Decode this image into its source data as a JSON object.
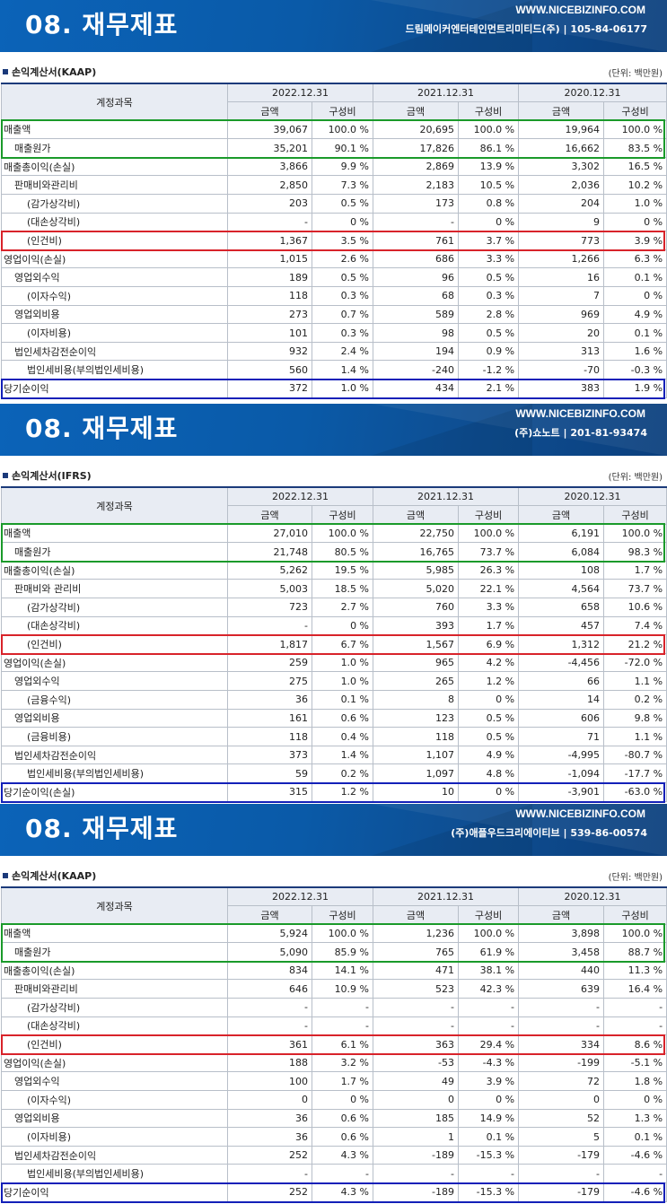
{
  "panels": [
    {
      "title": "08. 재무제표",
      "url": "WWW.NICEBIZINFO.COM",
      "company": "드림메이커엔터테인먼트리미티드(주) | 105-84-06177",
      "section": "손익계산서(KAAP)",
      "unit": "(단위: 백만원)",
      "header": {
        "account": "계정과목",
        "periods": [
          "2022.12.31",
          "2021.12.31",
          "2020.12.31"
        ],
        "amount": "금액",
        "ratio": "구성비"
      },
      "rows": [
        {
          "name": "매출액",
          "indent": 0,
          "v": [
            "39,067",
            "100.0 %",
            "20,695",
            "100.0 %",
            "19,964",
            "100.0 %"
          ]
        },
        {
          "name": "매출원가",
          "indent": 1,
          "v": [
            "35,201",
            "90.1 %",
            "17,826",
            "86.1 %",
            "16,662",
            "83.5 %"
          ]
        },
        {
          "name": "매출총이익(손실)",
          "indent": 0,
          "v": [
            "3,866",
            "9.9 %",
            "2,869",
            "13.9 %",
            "3,302",
            "16.5 %"
          ]
        },
        {
          "name": "판매비와관리비",
          "indent": 1,
          "v": [
            "2,850",
            "7.3 %",
            "2,183",
            "10.5 %",
            "2,036",
            "10.2 %"
          ]
        },
        {
          "name": "(감가상각비)",
          "indent": 2,
          "v": [
            "203",
            "0.5 %",
            "173",
            "0.8 %",
            "204",
            "1.0 %"
          ]
        },
        {
          "name": "(대손상각비)",
          "indent": 2,
          "v": [
            "-",
            "0 %",
            "-",
            "0 %",
            "9",
            "0 %"
          ]
        },
        {
          "name": "(인건비)",
          "indent": 2,
          "v": [
            "1,367",
            "3.5 %",
            "761",
            "3.7 %",
            "773",
            "3.9 %"
          ]
        },
        {
          "name": "영업이익(손실)",
          "indent": 0,
          "v": [
            "1,015",
            "2.6 %",
            "686",
            "3.3 %",
            "1,266",
            "6.3 %"
          ]
        },
        {
          "name": "영업외수익",
          "indent": 1,
          "v": [
            "189",
            "0.5 %",
            "96",
            "0.5 %",
            "16",
            "0.1 %"
          ]
        },
        {
          "name": "(이자수익)",
          "indent": 2,
          "v": [
            "118",
            "0.3 %",
            "68",
            "0.3 %",
            "7",
            "0 %"
          ]
        },
        {
          "name": "영업외비용",
          "indent": 1,
          "v": [
            "273",
            "0.7 %",
            "589",
            "2.8 %",
            "969",
            "4.9 %"
          ]
        },
        {
          "name": "(이자비용)",
          "indent": 2,
          "v": [
            "101",
            "0.3 %",
            "98",
            "0.5 %",
            "20",
            "0.1 %"
          ]
        },
        {
          "name": "법인세차감전순이익",
          "indent": 1,
          "v": [
            "932",
            "2.4 %",
            "194",
            "0.9 %",
            "313",
            "1.6 %"
          ]
        },
        {
          "name": "법인세비용(부의법인세비용)",
          "indent": 2,
          "v": [
            "560",
            "1.4 %",
            "-240",
            "-1.2 %",
            "-70",
            "-0.3 %"
          ]
        },
        {
          "name": "당기순이익",
          "indent": 0,
          "v": [
            "372",
            "1.0 %",
            "434",
            "2.1 %",
            "383",
            "1.9 %"
          ]
        }
      ]
    },
    {
      "title": "08. 재무제표",
      "url": "WWW.NICEBIZINFO.COM",
      "company": "(주)쇼노트 | 201-81-93474",
      "section": "손익계산서(IFRS)",
      "unit": "(단위: 백만원)",
      "header": {
        "account": "계정과목",
        "periods": [
          "2022.12.31",
          "2021.12.31",
          "2020.12.31"
        ],
        "amount": "금액",
        "ratio": "구성비"
      },
      "rows": [
        {
          "name": "매출액",
          "indent": 0,
          "v": [
            "27,010",
            "100.0 %",
            "22,750",
            "100.0 %",
            "6,191",
            "100.0 %"
          ]
        },
        {
          "name": "매출원가",
          "indent": 1,
          "v": [
            "21,748",
            "80.5 %",
            "16,765",
            "73.7 %",
            "6,084",
            "98.3 %"
          ]
        },
        {
          "name": "매출총이익(손실)",
          "indent": 0,
          "v": [
            "5,262",
            "19.5 %",
            "5,985",
            "26.3 %",
            "108",
            "1.7 %"
          ]
        },
        {
          "name": "판매비와 관리비",
          "indent": 1,
          "v": [
            "5,003",
            "18.5 %",
            "5,020",
            "22.1 %",
            "4,564",
            "73.7 %"
          ]
        },
        {
          "name": "(감가상각비)",
          "indent": 2,
          "v": [
            "723",
            "2.7 %",
            "760",
            "3.3 %",
            "658",
            "10.6 %"
          ]
        },
        {
          "name": "(대손상각비)",
          "indent": 2,
          "v": [
            "-",
            "0 %",
            "393",
            "1.7 %",
            "457",
            "7.4 %"
          ]
        },
        {
          "name": "(인건비)",
          "indent": 2,
          "v": [
            "1,817",
            "6.7 %",
            "1,567",
            "6.9 %",
            "1,312",
            "21.2 %"
          ]
        },
        {
          "name": "영업이익(손실)",
          "indent": 0,
          "v": [
            "259",
            "1.0 %",
            "965",
            "4.2 %",
            "-4,456",
            "-72.0 %"
          ]
        },
        {
          "name": "영업외수익",
          "indent": 1,
          "v": [
            "275",
            "1.0 %",
            "265",
            "1.2 %",
            "66",
            "1.1 %"
          ]
        },
        {
          "name": "(금융수익)",
          "indent": 2,
          "v": [
            "36",
            "0.1 %",
            "8",
            "0 %",
            "14",
            "0.2 %"
          ]
        },
        {
          "name": "영업외비용",
          "indent": 1,
          "v": [
            "161",
            "0.6 %",
            "123",
            "0.5 %",
            "606",
            "9.8 %"
          ]
        },
        {
          "name": "(금융비용)",
          "indent": 2,
          "v": [
            "118",
            "0.4 %",
            "118",
            "0.5 %",
            "71",
            "1.1 %"
          ]
        },
        {
          "name": "법인세차감전순이익",
          "indent": 1,
          "v": [
            "373",
            "1.4 %",
            "1,107",
            "4.9 %",
            "-4,995",
            "-80.7 %"
          ]
        },
        {
          "name": "법인세비용(부의법인세비용)",
          "indent": 2,
          "v": [
            "59",
            "0.2 %",
            "1,097",
            "4.8 %",
            "-1,094",
            "-17.7 %"
          ]
        },
        {
          "name": "당기순이익(손실)",
          "indent": 0,
          "v": [
            "315",
            "1.2 %",
            "10",
            "0 %",
            "-3,901",
            "-63.0 %"
          ]
        }
      ]
    },
    {
      "title": "08. 재무제표",
      "url": "WWW.NICEBIZINFO.COM",
      "company": "(주)애플우드크리에이티브 | 539-86-00574",
      "section": "손익계산서(KAAP)",
      "unit": "(단위: 백만원)",
      "header": {
        "account": "계정과목",
        "periods": [
          "2022.12.31",
          "2021.12.31",
          "2020.12.31"
        ],
        "amount": "금액",
        "ratio": "구성비"
      },
      "rows": [
        {
          "name": "매출액",
          "indent": 0,
          "v": [
            "5,924",
            "100.0 %",
            "1,236",
            "100.0 %",
            "3,898",
            "100.0 %"
          ]
        },
        {
          "name": "매출원가",
          "indent": 1,
          "v": [
            "5,090",
            "85.9 %",
            "765",
            "61.9 %",
            "3,458",
            "88.7 %"
          ]
        },
        {
          "name": "매출총이익(손실)",
          "indent": 0,
          "v": [
            "834",
            "14.1 %",
            "471",
            "38.1 %",
            "440",
            "11.3 %"
          ]
        },
        {
          "name": "판매비와관리비",
          "indent": 1,
          "v": [
            "646",
            "10.9 %",
            "523",
            "42.3 %",
            "639",
            "16.4 %"
          ]
        },
        {
          "name": "(감가상각비)",
          "indent": 2,
          "v": [
            "-",
            "-",
            "-",
            "-",
            "-",
            "-"
          ]
        },
        {
          "name": "(대손상각비)",
          "indent": 2,
          "v": [
            "-",
            "-",
            "-",
            "-",
            "-",
            "-"
          ]
        },
        {
          "name": "(인건비)",
          "indent": 2,
          "v": [
            "361",
            "6.1 %",
            "363",
            "29.4 %",
            "334",
            "8.6 %"
          ]
        },
        {
          "name": "영업이익(손실)",
          "indent": 0,
          "v": [
            "188",
            "3.2 %",
            "-53",
            "-4.3 %",
            "-199",
            "-5.1 %"
          ]
        },
        {
          "name": "영업외수익",
          "indent": 1,
          "v": [
            "100",
            "1.7 %",
            "49",
            "3.9 %",
            "72",
            "1.8 %"
          ]
        },
        {
          "name": "(이자수익)",
          "indent": 2,
          "v": [
            "0",
            "0 %",
            "0",
            "0 %",
            "0",
            "0 %"
          ]
        },
        {
          "name": "영업외비용",
          "indent": 1,
          "v": [
            "36",
            "0.6 %",
            "185",
            "14.9 %",
            "52",
            "1.3 %"
          ]
        },
        {
          "name": "(이자비용)",
          "indent": 2,
          "v": [
            "36",
            "0.6 %",
            "1",
            "0.1 %",
            "5",
            "0.1 %"
          ]
        },
        {
          "name": "법인세차감전순이익",
          "indent": 1,
          "v": [
            "252",
            "4.3 %",
            "-189",
            "-15.3 %",
            "-179",
            "-4.6 %"
          ]
        },
        {
          "name": "법인세비용(부의법인세비용)",
          "indent": 2,
          "v": [
            "-",
            "-",
            "-",
            "-",
            "-",
            "-"
          ]
        },
        {
          "name": "당기순이익",
          "indent": 0,
          "v": [
            "252",
            "4.3 %",
            "-189",
            "-15.3 %",
            "-179",
            "-4.6 %"
          ]
        }
      ]
    }
  ],
  "highlight_colors": {
    "sales": "#1a9a2a",
    "labor": "#d8232a",
    "net_income": "#1320b8"
  }
}
